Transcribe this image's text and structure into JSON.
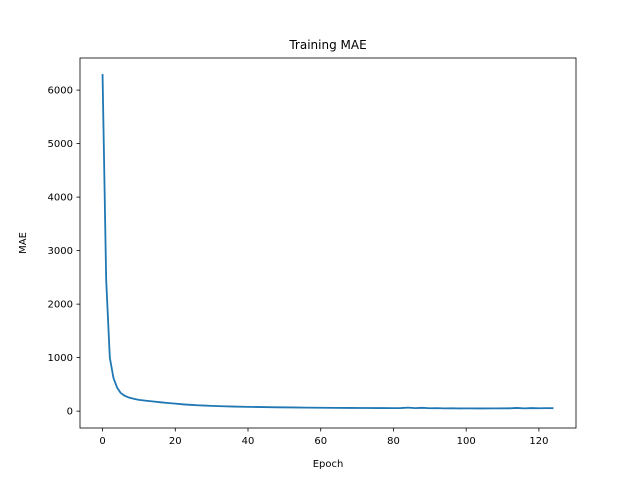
{
  "chart_data": {
    "type": "line",
    "title": "Training MAE",
    "xlabel": "Epoch",
    "ylabel": "MAE",
    "xlim": [
      -6.2,
      130.2
    ],
    "ylim": [
      -315,
      6600
    ],
    "xticks": [
      0,
      20,
      40,
      60,
      80,
      100,
      120
    ],
    "yticks": [
      0,
      1000,
      2000,
      3000,
      4000,
      5000,
      6000
    ],
    "grid": false,
    "legend": "none",
    "series": [
      {
        "color": "#1f77b4",
        "x": [
          0,
          1,
          2,
          3,
          4,
          5,
          6,
          7,
          8,
          9,
          10,
          12,
          14,
          16,
          18,
          20,
          22,
          24,
          26,
          28,
          30,
          33,
          36,
          40,
          44,
          48,
          52,
          56,
          60,
          64,
          68,
          72,
          76,
          80,
          82,
          84,
          86,
          88,
          90,
          92,
          94,
          96,
          98,
          100,
          104,
          108,
          112,
          114,
          116,
          118,
          120,
          122,
          124
        ],
        "y": [
          6300,
          2450,
          1000,
          620,
          440,
          340,
          290,
          260,
          240,
          225,
          210,
          195,
          180,
          165,
          152,
          140,
          128,
          118,
          110,
          104,
          98,
          92,
          86,
          80,
          76,
          72,
          69,
          66,
          63,
          61,
          60,
          59,
          58,
          56,
          58,
          66,
          56,
          62,
          54,
          57,
          52,
          54,
          51,
          52,
          51,
          52,
          53,
          60,
          52,
          58,
          54,
          56,
          55
        ]
      }
    ]
  }
}
